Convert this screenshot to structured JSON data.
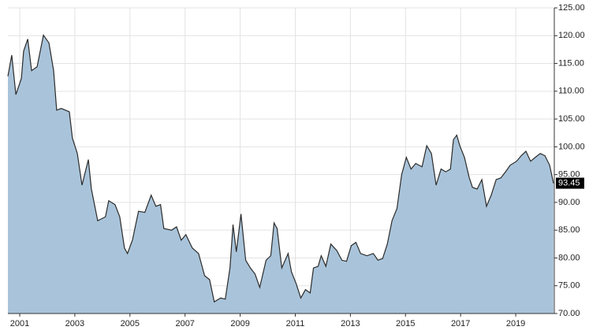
{
  "chart_data": {
    "type": "area",
    "x": [
      2000.57,
      2000.71,
      2000.86,
      2001.06,
      2001.14,
      2001.29,
      2001.43,
      2001.63,
      2001.86,
      2002.06,
      2002.23,
      2002.34,
      2002.51,
      2002.8,
      2002.91,
      2003.09,
      2003.26,
      2003.49,
      2003.6,
      2003.83,
      2004.11,
      2004.23,
      2004.46,
      2004.63,
      2004.8,
      2004.91,
      2005.09,
      2005.31,
      2005.54,
      2005.77,
      2005.94,
      2006.11,
      2006.23,
      2006.51,
      2006.69,
      2006.86,
      2007.03,
      2007.26,
      2007.49,
      2007.71,
      2007.89,
      2008.06,
      2008.29,
      2008.46,
      2008.63,
      2008.74,
      2008.86,
      2009.03,
      2009.2,
      2009.37,
      2009.54,
      2009.71,
      2009.94,
      2010.11,
      2010.23,
      2010.34,
      2010.51,
      2010.74,
      2010.86,
      2011.03,
      2011.2,
      2011.37,
      2011.54,
      2011.66,
      2011.83,
      2011.94,
      2012.11,
      2012.29,
      2012.51,
      2012.69,
      2012.86,
      2013.03,
      2013.2,
      2013.37,
      2013.6,
      2013.83,
      2014.0,
      2014.17,
      2014.34,
      2014.51,
      2014.69,
      2014.86,
      2015.03,
      2015.2,
      2015.37,
      2015.6,
      2015.77,
      2015.94,
      2016.11,
      2016.29,
      2016.46,
      2016.63,
      2016.74,
      2016.86,
      2016.97,
      2017.14,
      2017.31,
      2017.43,
      2017.6,
      2017.77,
      2017.94,
      2018.11,
      2018.29,
      2018.46,
      2018.63,
      2018.8,
      2019.03,
      2019.2,
      2019.37,
      2019.54,
      2019.71,
      2019.89,
      2020.06,
      2020.23,
      2020.37
    ],
    "values": [
      112.7,
      116.5,
      109.4,
      112.3,
      117.2,
      119.4,
      113.7,
      114.4,
      120.1,
      118.7,
      113.7,
      106.6,
      106.9,
      106.3,
      101.6,
      98.8,
      93.1,
      97.7,
      92.4,
      86.7,
      87.4,
      90.3,
      89.6,
      87.4,
      81.8,
      80.8,
      83.2,
      88.4,
      88.2,
      91.3,
      89.3,
      89.6,
      85.3,
      85.0,
      85.6,
      83.2,
      84.2,
      81.8,
      80.8,
      76.8,
      76.1,
      72.1,
      72.8,
      72.6,
      78.2,
      86.0,
      81.1,
      87.9,
      79.6,
      78.2,
      77.1,
      74.7,
      79.6,
      80.4,
      86.3,
      85.3,
      78.2,
      80.8,
      77.5,
      75.4,
      72.8,
      74.3,
      73.7,
      78.2,
      78.5,
      80.4,
      78.5,
      82.5,
      81.3,
      79.6,
      79.4,
      82.2,
      82.8,
      80.8,
      80.4,
      80.8,
      79.6,
      79.9,
      82.5,
      86.7,
      88.9,
      95.0,
      98.1,
      96.0,
      97.0,
      96.4,
      100.2,
      98.8,
      93.1,
      96.0,
      95.5,
      96.0,
      101.3,
      102.1,
      100.2,
      98.1,
      94.5,
      92.7,
      92.4,
      94.1,
      89.3,
      91.3,
      94.1,
      94.4,
      95.5,
      96.7,
      97.4,
      98.4,
      99.2,
      97.4,
      98.1,
      98.8,
      98.4,
      96.7,
      93.45
    ],
    "value_labels": [
      null,
      null,
      null,
      null,
      null,
      null,
      null,
      null,
      null,
      null,
      null,
      null,
      null,
      null,
      null,
      null,
      null,
      null,
      null,
      null,
      null,
      null,
      null,
      null,
      null,
      null,
      null,
      null,
      null,
      null,
      null,
      null,
      null,
      null,
      null,
      null,
      null,
      null,
      null,
      null,
      null,
      null,
      null,
      null,
      null,
      null,
      null,
      null,
      null,
      null,
      null,
      null,
      null,
      null,
      null,
      null,
      null,
      null,
      null,
      null,
      null,
      null,
      null,
      null,
      null,
      null,
      null,
      null,
      null,
      null,
      null,
      null,
      null,
      null,
      null,
      null,
      null,
      null,
      null,
      null,
      null,
      null,
      null,
      null,
      null,
      null,
      null,
      null,
      null,
      null,
      null,
      null,
      null,
      null,
      null,
      null,
      null,
      null,
      null,
      null,
      null,
      null,
      null,
      null,
      null,
      null,
      null,
      null,
      null,
      null,
      null,
      null,
      null,
      null,
      "93.45"
    ],
    "color": "#a9c4da",
    "line_color": "#2b2b2b",
    "xlim": [
      2000.57,
      2020.4
    ],
    "xticks": [
      2001,
      2003,
      2005,
      2007,
      2009,
      2011,
      2013,
      2015,
      2017,
      2019
    ],
    "ylim": [
      70,
      125
    ],
    "yticks": [
      {
        "value": 70,
        "label": "70.00"
      },
      {
        "value": 75,
        "label": "75.00"
      },
      {
        "value": 80,
        "label": "80.00"
      },
      {
        "value": 85,
        "label": "85.00"
      },
      {
        "value": 90,
        "label": "90.00"
      },
      {
        "value": 95,
        "label": "95.00"
      },
      {
        "value": 100,
        "label": "100.00"
      },
      {
        "value": 105,
        "label": "105.00"
      },
      {
        "value": 110,
        "label": "110.00"
      },
      {
        "value": 115,
        "label": "115.00"
      },
      {
        "value": 120,
        "label": "120.00"
      },
      {
        "value": 125,
        "label": "125.00"
      }
    ],
    "grid": true
  }
}
